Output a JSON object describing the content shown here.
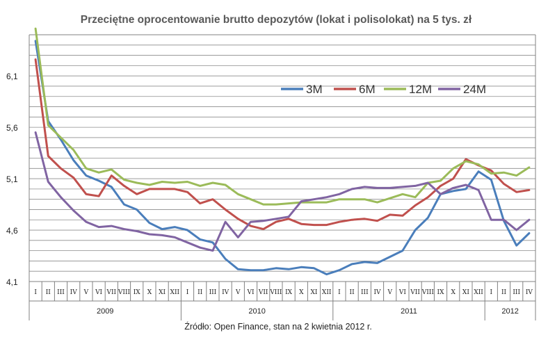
{
  "chart_data": {
    "type": "line",
    "title": "Przeciętne oprocentowanie brutto depozytów (lokat i polisolokat) na 5 tys. zł",
    "source": "Źródło: Open Finance, stan na 2 kwietnia 2012 r.",
    "ylim": [
      4.1,
      6.5
    ],
    "yticks": [
      "4,1",
      "4,6",
      "5,1",
      "5,6",
      "6,1"
    ],
    "grid": true,
    "legend_position": "top-right (inside plot)",
    "x": [
      "I",
      "II",
      "III",
      "IV",
      "V",
      "VI",
      "VII",
      "VIII",
      "IX",
      "X",
      "XI",
      "XII",
      "I",
      "II",
      "III",
      "IV",
      "V",
      "VI",
      "VII",
      "VIII",
      "IX",
      "X",
      "XI",
      "XII",
      "I",
      "II",
      "III",
      "IV",
      "V",
      "VI",
      "VII",
      "VIII",
      "IX",
      "X",
      "XI",
      "XII",
      "I",
      "II",
      "III",
      "IV"
    ],
    "years": [
      {
        "label": "2009",
        "months": 12
      },
      {
        "label": "2010",
        "months": 12
      },
      {
        "label": "2011",
        "months": 12
      },
      {
        "label": "2012",
        "months": 4
      }
    ],
    "series": [
      {
        "name": "3M",
        "color": "#4a7ebb",
        "values": [
          6.44,
          5.66,
          5.48,
          5.28,
          5.13,
          5.08,
          5.02,
          4.85,
          4.8,
          4.67,
          4.61,
          4.63,
          4.6,
          4.51,
          4.48,
          4.32,
          4.22,
          4.21,
          4.21,
          4.23,
          4.22,
          4.24,
          4.23,
          4.17,
          4.21,
          4.27,
          4.29,
          4.28,
          4.34,
          4.4,
          4.6,
          4.72,
          4.95,
          4.98,
          5.0,
          5.17,
          5.09,
          4.69,
          4.45,
          4.57
        ]
      },
      {
        "name": "6M",
        "color": "#c0504d",
        "values": [
          6.26,
          5.32,
          5.2,
          5.11,
          4.95,
          4.93,
          5.13,
          5.03,
          4.95,
          5.0,
          5.0,
          5.0,
          4.97,
          4.86,
          4.9,
          4.8,
          4.71,
          4.64,
          4.61,
          4.68,
          4.71,
          4.66,
          4.65,
          4.65,
          4.68,
          4.7,
          4.71,
          4.69,
          4.75,
          4.74,
          4.84,
          4.92,
          5.03,
          5.1,
          5.29,
          5.23,
          5.18,
          5.05,
          4.97,
          4.99
        ]
      },
      {
        "name": "12M",
        "color": "#9bbb59",
        "values": [
          6.56,
          5.62,
          5.5,
          5.38,
          5.2,
          5.16,
          5.19,
          5.09,
          5.06,
          5.04,
          5.07,
          5.06,
          5.07,
          5.03,
          5.06,
          5.04,
          4.95,
          4.9,
          4.85,
          4.85,
          4.86,
          4.87,
          4.87,
          4.87,
          4.9,
          4.9,
          4.9,
          4.87,
          4.91,
          4.95,
          4.92,
          5.06,
          5.08,
          5.2,
          5.27,
          5.24,
          5.15,
          5.16,
          5.13,
          5.21
        ]
      },
      {
        "name": "24M",
        "color": "#8064a2",
        "values": [
          5.55,
          5.07,
          4.92,
          4.79,
          4.68,
          4.63,
          4.64,
          4.61,
          4.59,
          4.56,
          4.55,
          4.53,
          4.48,
          4.43,
          4.4,
          4.68,
          4.53,
          4.68,
          4.69,
          4.71,
          4.73,
          4.88,
          4.9,
          4.92,
          4.95,
          5.0,
          5.02,
          5.01,
          5.01,
          5.02,
          5.03,
          5.06,
          4.95,
          5.01,
          5.04,
          4.99,
          4.7,
          4.7,
          4.6,
          4.7
        ]
      }
    ]
  }
}
